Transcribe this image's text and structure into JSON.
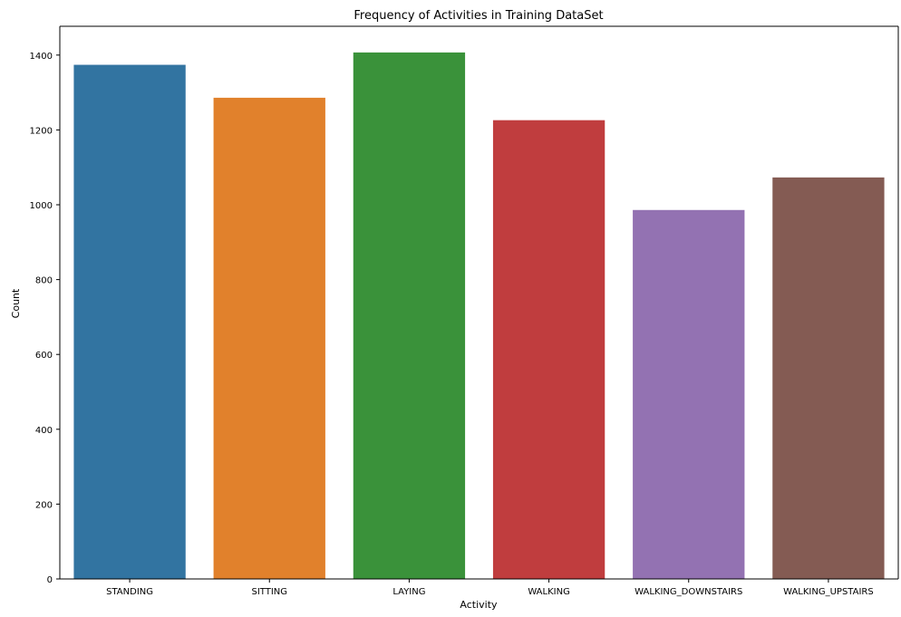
{
  "chart_data": {
    "type": "bar",
    "title": "Frequency of Activities in Training DataSet",
    "xlabel": "Activity",
    "ylabel": "Count",
    "categories": [
      "STANDING",
      "SITTING",
      "LAYING",
      "WALKING",
      "WALKING_DOWNSTAIRS",
      "WALKING_UPSTAIRS"
    ],
    "values": [
      1374,
      1286,
      1407,
      1226,
      986,
      1073
    ],
    "colors": [
      "#3274a1",
      "#e1812c",
      "#3a923a",
      "#c03d3e",
      "#9372b2",
      "#845b53"
    ],
    "ylim": [
      0,
      1477
    ],
    "yticks": [
      0,
      200,
      400,
      600,
      800,
      1000,
      1200,
      1400
    ],
    "grid": false,
    "legend": "none"
  }
}
